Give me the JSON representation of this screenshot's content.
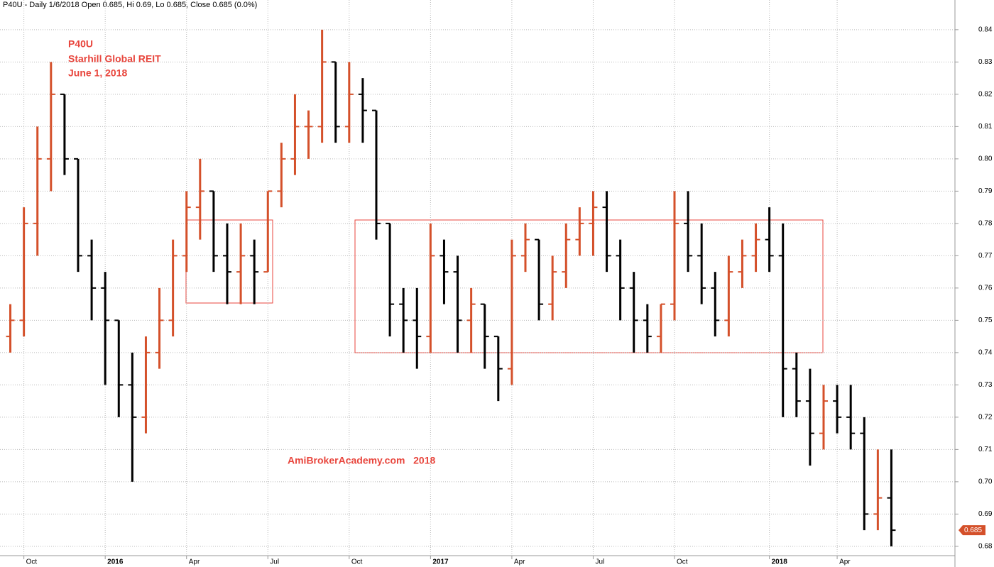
{
  "chart_data": {
    "type": "ohlc",
    "header": "P40U - Daily 1/6/2018 Open 0.685, Hi 0.69, Lo 0.685, Close 0.685 (0.0%)",
    "annotations": [
      "P40U",
      "Starhill Global REIT",
      "June 1, 2018"
    ],
    "watermark": "AmiBrokerAcademy.com   2018",
    "up_color": "#d4502a",
    "down_color": "#000000",
    "categories": [
      null,
      "Oct",
      null,
      null,
      null,
      null,
      null,
      "2016",
      null,
      null,
      null,
      null,
      null,
      "Apr",
      null,
      null,
      null,
      null,
      null,
      "Jul",
      null,
      null,
      null,
      null,
      null,
      "Oct",
      null,
      null,
      null,
      null,
      null,
      "2017",
      null,
      null,
      null,
      null,
      null,
      "Apr",
      null,
      null,
      null,
      null,
      null,
      "Jul",
      null,
      null,
      null,
      null,
      null,
      "Oct",
      null,
      null,
      null,
      null,
      null,
      null,
      "2018",
      null,
      null,
      null,
      null,
      "Apr",
      null,
      null,
      null,
      null
    ],
    "open": [
      0.745,
      0.75,
      0.78,
      0.8,
      0.82,
      0.8,
      0.77,
      0.76,
      0.75,
      0.73,
      0.72,
      0.74,
      0.75,
      0.77,
      0.785,
      0.79,
      0.77,
      0.765,
      0.77,
      0.765,
      0.79,
      0.8,
      0.81,
      0.81,
      0.83,
      0.81,
      0.82,
      0.815,
      0.78,
      0.755,
      0.75,
      0.745,
      0.77,
      0.765,
      0.75,
      0.755,
      0.745,
      0.735,
      0.77,
      0.775,
      0.755,
      0.765,
      0.775,
      0.78,
      0.785,
      0.77,
      0.76,
      0.75,
      0.745,
      0.755,
      0.78,
      0.77,
      0.76,
      0.75,
      0.765,
      0.77,
      0.775,
      0.77,
      0.735,
      0.725,
      0.715,
      0.725,
      0.72,
      0.715,
      0.69,
      0.695
    ],
    "high": [
      0.755,
      0.785,
      0.81,
      0.83,
      0.82,
      0.8,
      0.775,
      0.765,
      0.75,
      0.74,
      0.745,
      0.76,
      0.775,
      0.79,
      0.8,
      0.79,
      0.78,
      0.78,
      0.775,
      0.79,
      0.805,
      0.82,
      0.815,
      0.84,
      0.83,
      0.83,
      0.825,
      0.815,
      0.78,
      0.76,
      0.76,
      0.78,
      0.775,
      0.77,
      0.76,
      0.755,
      0.745,
      0.775,
      0.78,
      0.775,
      0.77,
      0.78,
      0.785,
      0.79,
      0.79,
      0.775,
      0.765,
      0.755,
      0.755,
      0.79,
      0.79,
      0.78,
      0.765,
      0.77,
      0.775,
      0.78,
      0.785,
      0.78,
      0.74,
      0.735,
      0.73,
      0.73,
      0.73,
      0.72,
      0.71,
      0.71
    ],
    "low": [
      0.74,
      0.745,
      0.77,
      0.79,
      0.795,
      0.765,
      0.75,
      0.73,
      0.72,
      0.7,
      0.715,
      0.735,
      0.745,
      0.765,
      0.775,
      0.765,
      0.755,
      0.755,
      0.755,
      0.765,
      0.785,
      0.795,
      0.8,
      0.805,
      0.805,
      0.805,
      0.805,
      0.775,
      0.745,
      0.74,
      0.735,
      0.74,
      0.755,
      0.74,
      0.74,
      0.735,
      0.725,
      0.73,
      0.765,
      0.75,
      0.75,
      0.76,
      0.77,
      0.77,
      0.765,
      0.75,
      0.74,
      0.74,
      0.74,
      0.75,
      0.765,
      0.755,
      0.745,
      0.745,
      0.76,
      0.765,
      0.765,
      0.72,
      0.72,
      0.705,
      0.71,
      0.715,
      0.71,
      0.685,
      0.685,
      0.68
    ],
    "close": [
      0.75,
      0.78,
      0.8,
      0.82,
      0.8,
      0.77,
      0.76,
      0.75,
      0.73,
      0.72,
      0.74,
      0.75,
      0.77,
      0.785,
      0.79,
      0.77,
      0.765,
      0.77,
      0.765,
      0.79,
      0.8,
      0.81,
      0.81,
      0.83,
      0.81,
      0.82,
      0.815,
      0.78,
      0.755,
      0.75,
      0.745,
      0.77,
      0.765,
      0.75,
      0.755,
      0.745,
      0.735,
      0.77,
      0.775,
      0.755,
      0.765,
      0.775,
      0.78,
      0.785,
      0.77,
      0.76,
      0.75,
      0.745,
      0.755,
      0.78,
      0.77,
      0.76,
      0.75,
      0.765,
      0.77,
      0.775,
      0.77,
      0.735,
      0.725,
      0.715,
      0.725,
      0.72,
      0.715,
      0.69,
      0.695,
      0.685
    ],
    "ylim": [
      0.6736,
      0.8492
    ],
    "yticks": [
      0.68,
      0.69,
      {
        "value": 0.7,
        "label": "0.70"
      },
      0.71,
      0.72,
      0.73,
      0.74,
      0.75,
      0.76,
      0.77,
      0.78,
      0.79,
      {
        "value": 0.8,
        "label": "0.80"
      },
      0.81,
      0.82,
      0.83,
      0.84
    ],
    "grid": true
  }
}
